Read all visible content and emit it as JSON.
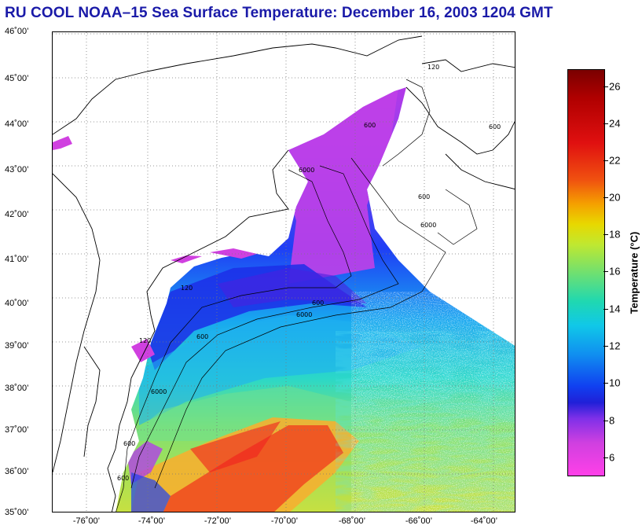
{
  "title": "RU COOL  NOAA–15  Sea Surface Temperature:  December 16, 2003 1204 GMT",
  "map": {
    "lat_labels": [
      "46˚00’",
      "45˚00’",
      "44˚00’",
      "43˚00’",
      "42˚00’",
      "41˚00’",
      "40˚00’",
      "39˚00’",
      "38˚00’",
      "37˚00’",
      "36˚00’",
      "35˚00’"
    ],
    "lon_labels": [
      "-76˚00’",
      "-74˚00’",
      "-72˚00’",
      "-70˚00’",
      "-68˚00’",
      "-66˚00’",
      "-64˚00’"
    ],
    "bathymetry_labels": [
      "120",
      "600",
      "6000",
      "600",
      "6000",
      "120",
      "600",
      "6000",
      "600",
      "600",
      "6000",
      "600",
      "120",
      "600"
    ],
    "lat_range": [
      35,
      46
    ],
    "lon_range": [
      -77,
      -63.5
    ]
  },
  "colorbar": {
    "title": "Temperature (°C)",
    "ticks": [
      "26",
      "24",
      "22",
      "20",
      "18",
      "16",
      "14",
      "12",
      "10",
      "8",
      "6"
    ],
    "range": [
      5,
      27
    ]
  },
  "colors": {
    "title": "#1a1aa8",
    "land": "#ffffff",
    "grid": "#777777"
  }
}
